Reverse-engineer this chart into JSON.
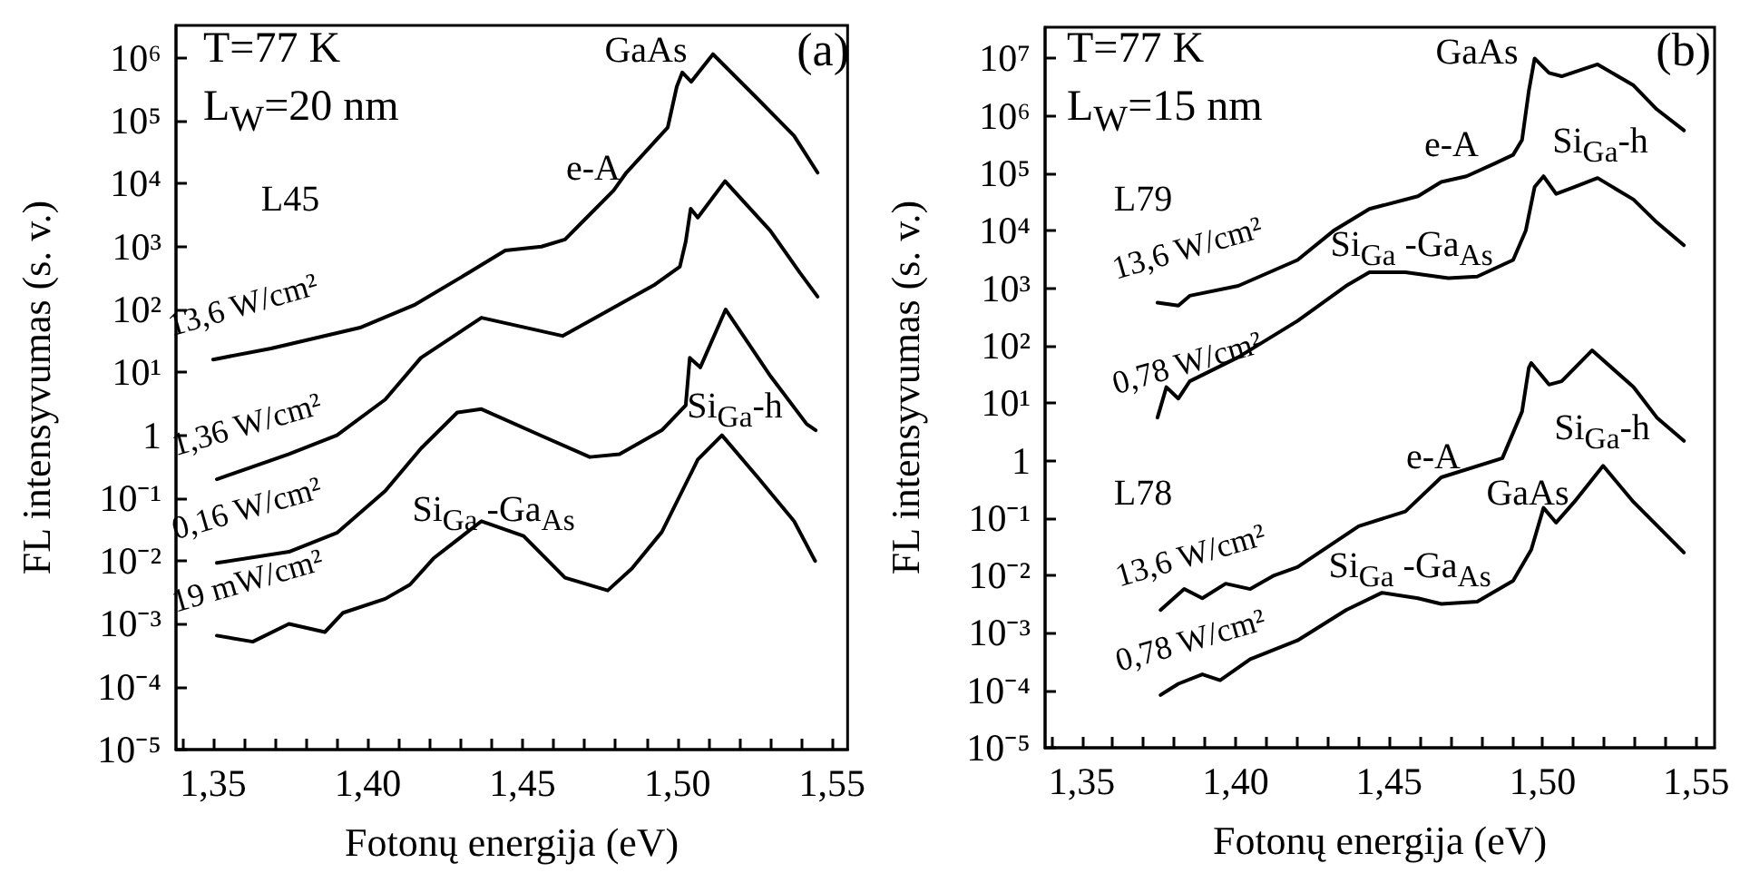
{
  "chart_data": [
    {
      "type": "line",
      "xlabel": "Fotonų energija (eV)",
      "ylabel": "FL intensyvumas (s. v.)",
      "log": "y",
      "grid": false,
      "legend": false,
      "xlim": [
        1.338,
        1.555
      ],
      "ylim": [
        1e-05,
        3300000.0
      ],
      "xticks": [
        {
          "value": 1.35,
          "label": "1,35"
        },
        {
          "value": 1.4,
          "label": "1,40"
        },
        {
          "value": 1.45,
          "label": "1,45"
        },
        {
          "value": 1.5,
          "label": "1,50"
        },
        {
          "value": 1.55,
          "label": "1,55"
        },
        {
          "value": 1.34,
          "label": null
        },
        {
          "value": 1.36,
          "label": null
        },
        {
          "value": 1.37,
          "label": null
        },
        {
          "value": 1.38,
          "label": null
        },
        {
          "value": 1.39,
          "label": null
        },
        {
          "value": 1.41,
          "label": null
        },
        {
          "value": 1.42,
          "label": null
        },
        {
          "value": 1.43,
          "label": null
        },
        {
          "value": 1.44,
          "label": null
        },
        {
          "value": 1.46,
          "label": null
        },
        {
          "value": 1.47,
          "label": null
        },
        {
          "value": 1.48,
          "label": null
        },
        {
          "value": 1.49,
          "label": null
        },
        {
          "value": 1.51,
          "label": null
        },
        {
          "value": 1.52,
          "label": null
        },
        {
          "value": 1.53,
          "label": null
        },
        {
          "value": 1.54,
          "label": null
        }
      ],
      "yticks": [
        {
          "value": 1e-05,
          "label": "10⁻⁵"
        },
        {
          "value": 0.0001,
          "label": "10⁻⁴"
        },
        {
          "value": 0.001,
          "label": "10⁻³"
        },
        {
          "value": 0.01,
          "label": "10⁻²"
        },
        {
          "value": 0.1,
          "label": "10⁻¹"
        },
        1,
        {
          "value": 10,
          "label": "10¹"
        },
        {
          "value": 100,
          "label": "10²"
        },
        {
          "value": 1000,
          "label": "10³"
        },
        {
          "value": 10000,
          "label": "10⁴"
        },
        {
          "value": 100000,
          "label": "10⁵"
        },
        {
          "value": 1000000,
          "label": "10⁶"
        }
      ],
      "series": [
        {
          "name": "13,6 W/cm²",
          "color": "#000000",
          "x": [
            1.35,
            1.3687,
            1.3978,
            1.4153,
            1.4328,
            1.4444,
            1.4561,
            1.4637,
            1.4707,
            1.4794,
            1.4835,
            1.4969,
            1.4998,
            1.5016,
            1.5045,
            1.5115,
            1.5261,
            1.5377,
            1.5453
          ],
          "values": [
            16,
            24,
            52,
            120,
            390,
            870,
            1000,
            1300,
            2900,
            7800,
            15000,
            79000,
            350000,
            590000,
            420000,
            1150000,
            220000,
            58000,
            15000
          ]
        },
        {
          "name": "1,36 W/cm²",
          "color": "#000000",
          "x": [
            1.3512,
            1.3745,
            1.39,
            1.4056,
            1.4171,
            1.4367,
            1.4629,
            1.4753,
            1.4928,
            1.5008,
            1.5027,
            1.5043,
            1.5066,
            1.5154,
            1.53,
            1.5395,
            1.5453
          ],
          "values": [
            0.2,
            0.5,
            1,
            3.7,
            17,
            74,
            38,
            83,
            250,
            480,
            1200,
            4000,
            2900,
            11000,
            1800,
            390,
            160
          ]
        },
        {
          "name": "0,16 W/cm²",
          "color": "#000000",
          "x": [
            1.3512,
            1.3745,
            1.39,
            1.4056,
            1.4172,
            1.4289,
            1.4367,
            1.4561,
            1.4717,
            1.4813,
            1.495,
            1.5027,
            1.504,
            1.5074,
            1.5156,
            1.5301,
            1.5418,
            1.5447
          ],
          "values": [
            0.0093,
            0.014,
            0.028,
            0.13,
            0.62,
            2.3,
            2.6,
            0.98,
            0.45,
            0.5,
            1.2,
            3,
            17,
            12,
            100,
            8.7,
            1.5,
            1.2
          ]
        },
        {
          "name": "19 mW/cm²",
          "color": "#000000",
          "x": [
            1.3512,
            1.3628,
            1.3745,
            1.3861,
            1.392,
            1.4056,
            1.4136,
            1.4212,
            1.4367,
            1.4503,
            1.4637,
            1.4775,
            1.4853,
            1.495,
            1.5066,
            1.5144,
            1.5261,
            1.5377,
            1.5445
          ],
          "values": [
            0.00065,
            0.00052,
            0.001,
            0.00074,
            0.0015,
            0.0025,
            0.0042,
            0.011,
            0.043,
            0.025,
            0.0054,
            0.0034,
            0.0076,
            0.029,
            0.41,
            1,
            0.21,
            0.043,
            0.01
          ]
        }
      ],
      "annotations": [
        "T=77 K",
        "L$_{W}$=20 nm",
        "(a)",
        "L45",
        "GaAs",
        "e-A",
        "Si$_{Ga}$-h",
        "Si$_{Ga}$ -Ga$_{As}$"
      ]
    },
    {
      "type": "line",
      "xlabel": "Fotonų energija (eV)",
      "ylabel": "FL intensyvumas (s. v.)",
      "log": "y",
      "grid": false,
      "legend": false,
      "xlim": [
        1.338,
        1.556
      ],
      "ylim": [
        1e-05,
        35000000.0
      ],
      "xticks": [
        {
          "value": 1.35,
          "label": "1,35"
        },
        {
          "value": 1.4,
          "label": "1,40"
        },
        {
          "value": 1.45,
          "label": "1,45"
        },
        {
          "value": 1.5,
          "label": "1,50"
        },
        {
          "value": 1.55,
          "label": "1,55"
        },
        {
          "value": 1.34,
          "label": null
        },
        {
          "value": 1.36,
          "label": null
        },
        {
          "value": 1.37,
          "label": null
        },
        {
          "value": 1.38,
          "label": null
        },
        {
          "value": 1.39,
          "label": null
        },
        {
          "value": 1.41,
          "label": null
        },
        {
          "value": 1.42,
          "label": null
        },
        {
          "value": 1.43,
          "label": null
        },
        {
          "value": 1.44,
          "label": null
        },
        {
          "value": 1.46,
          "label": null
        },
        {
          "value": 1.47,
          "label": null
        },
        {
          "value": 1.48,
          "label": null
        },
        {
          "value": 1.49,
          "label": null
        },
        {
          "value": 1.51,
          "label": null
        },
        {
          "value": 1.52,
          "label": null
        },
        {
          "value": 1.53,
          "label": null
        },
        {
          "value": 1.54,
          "label": null
        }
      ],
      "yticks": [
        {
          "value": 1e-05,
          "label": "10⁻⁵"
        },
        {
          "value": 0.0001,
          "label": "10⁻⁴"
        },
        {
          "value": 0.001,
          "label": "10⁻³"
        },
        {
          "value": 0.01,
          "label": "10⁻²"
        },
        {
          "value": 0.1,
          "label": "10⁻¹"
        },
        1,
        {
          "value": 10,
          "label": "10¹"
        },
        {
          "value": 100,
          "label": "10²"
        },
        {
          "value": 1000,
          "label": "10³"
        },
        {
          "value": 10000,
          "label": "10⁴"
        },
        {
          "value": 100000,
          "label": "10⁵"
        },
        {
          "value": 1000000,
          "label": "10⁶"
        },
        {
          "value": 10000000,
          "label": "10⁷"
        }
      ],
      "series": [
        {
          "name": "13,6 W/cm²",
          "color": "#000000",
          "x": [
            1.3746,
            1.3814,
            1.3851,
            1.4009,
            1.4202,
            1.4319,
            1.4436,
            1.4594,
            1.467,
            1.4752,
            1.4846,
            1.4904,
            1.4933,
            1.4955,
            1.4974,
            1.5021,
            1.5062,
            1.5179,
            1.5296,
            1.5372,
            1.546
          ],
          "values": [
            560,
            500,
            740,
            1100,
            3100,
            10000,
            24000,
            40000,
            71000,
            89000,
            150000,
            210000,
            380000,
            2700000,
            10000000,
            5600000,
            4900000,
            7900000,
            3400000,
            1300000,
            560000
          ]
        },
        {
          "name": "0,78 W/cm²",
          "color": "#000000",
          "x": [
            1.3746,
            1.3775,
            1.3814,
            1.3851,
            1.4009,
            1.4202,
            1.436,
            1.4436,
            1.4553,
            1.4693,
            1.4787,
            1.4904,
            1.4945,
            1.4974,
            1.5003,
            1.5044,
            1.5103,
            1.5179,
            1.5296,
            1.5372,
            1.546
          ],
          "values": [
            5.6,
            19,
            12,
            24,
            63,
            270,
            1100,
            1900,
            1900,
            1500,
            1600,
            3100,
            10000,
            58000,
            89000,
            44000,
            58000,
            83000,
            35000,
            14000,
            5600
          ]
        },
        {
          "name": "13,6 W/cm²",
          "color": "#000000",
          "x": [
            1.3756,
            1.3833,
            1.3892,
            1.3968,
            1.4048,
            1.4126,
            1.4202,
            1.4401,
            1.4553,
            1.467,
            1.4869,
            1.4933,
            1.4955,
            1.4963,
            1.5021,
            1.5062,
            1.5161,
            1.5296,
            1.5372,
            1.546
          ],
          "values": [
            0.0025,
            0.0058,
            0.004,
            0.0072,
            0.0058,
            0.01,
            0.014,
            0.072,
            0.13,
            0.51,
            1.1,
            7.1,
            41,
            50,
            21,
            24,
            83,
            19,
            5.6,
            2.2
          ]
        },
        {
          "name": "0,78 W/cm²",
          "color": "#000000",
          "x": [
            1.3756,
            1.3814,
            1.3892,
            1.395,
            1.4048,
            1.4202,
            1.436,
            1.4477,
            1.4594,
            1.467,
            1.4787,
            1.4904,
            1.4963,
            1.5003,
            1.5044,
            1.5103,
            1.5197,
            1.5296,
            1.546
          ],
          "values": [
            8.3e-05,
            0.00013,
            0.00019,
            0.00015,
            0.00035,
            0.00074,
            0.0025,
            0.005,
            0.004,
            0.0032,
            0.0035,
            0.0081,
            0.028,
            0.15,
            0.083,
            0.19,
            0.81,
            0.19,
            0.025
          ]
        }
      ],
      "annotations": [
        "T=77 K",
        "L$_{W}$=15 nm",
        "(b)",
        "L79",
        "L78",
        "GaAs",
        "e-A",
        "Si$_{Ga}$-h",
        "Si$_{Ga}$ -Ga$_{As}$",
        "e-A",
        "GaAs",
        "Si$_{Ga}$-h",
        "Si$_{Ga}$ -Ga$_{As}$"
      ]
    }
  ]
}
